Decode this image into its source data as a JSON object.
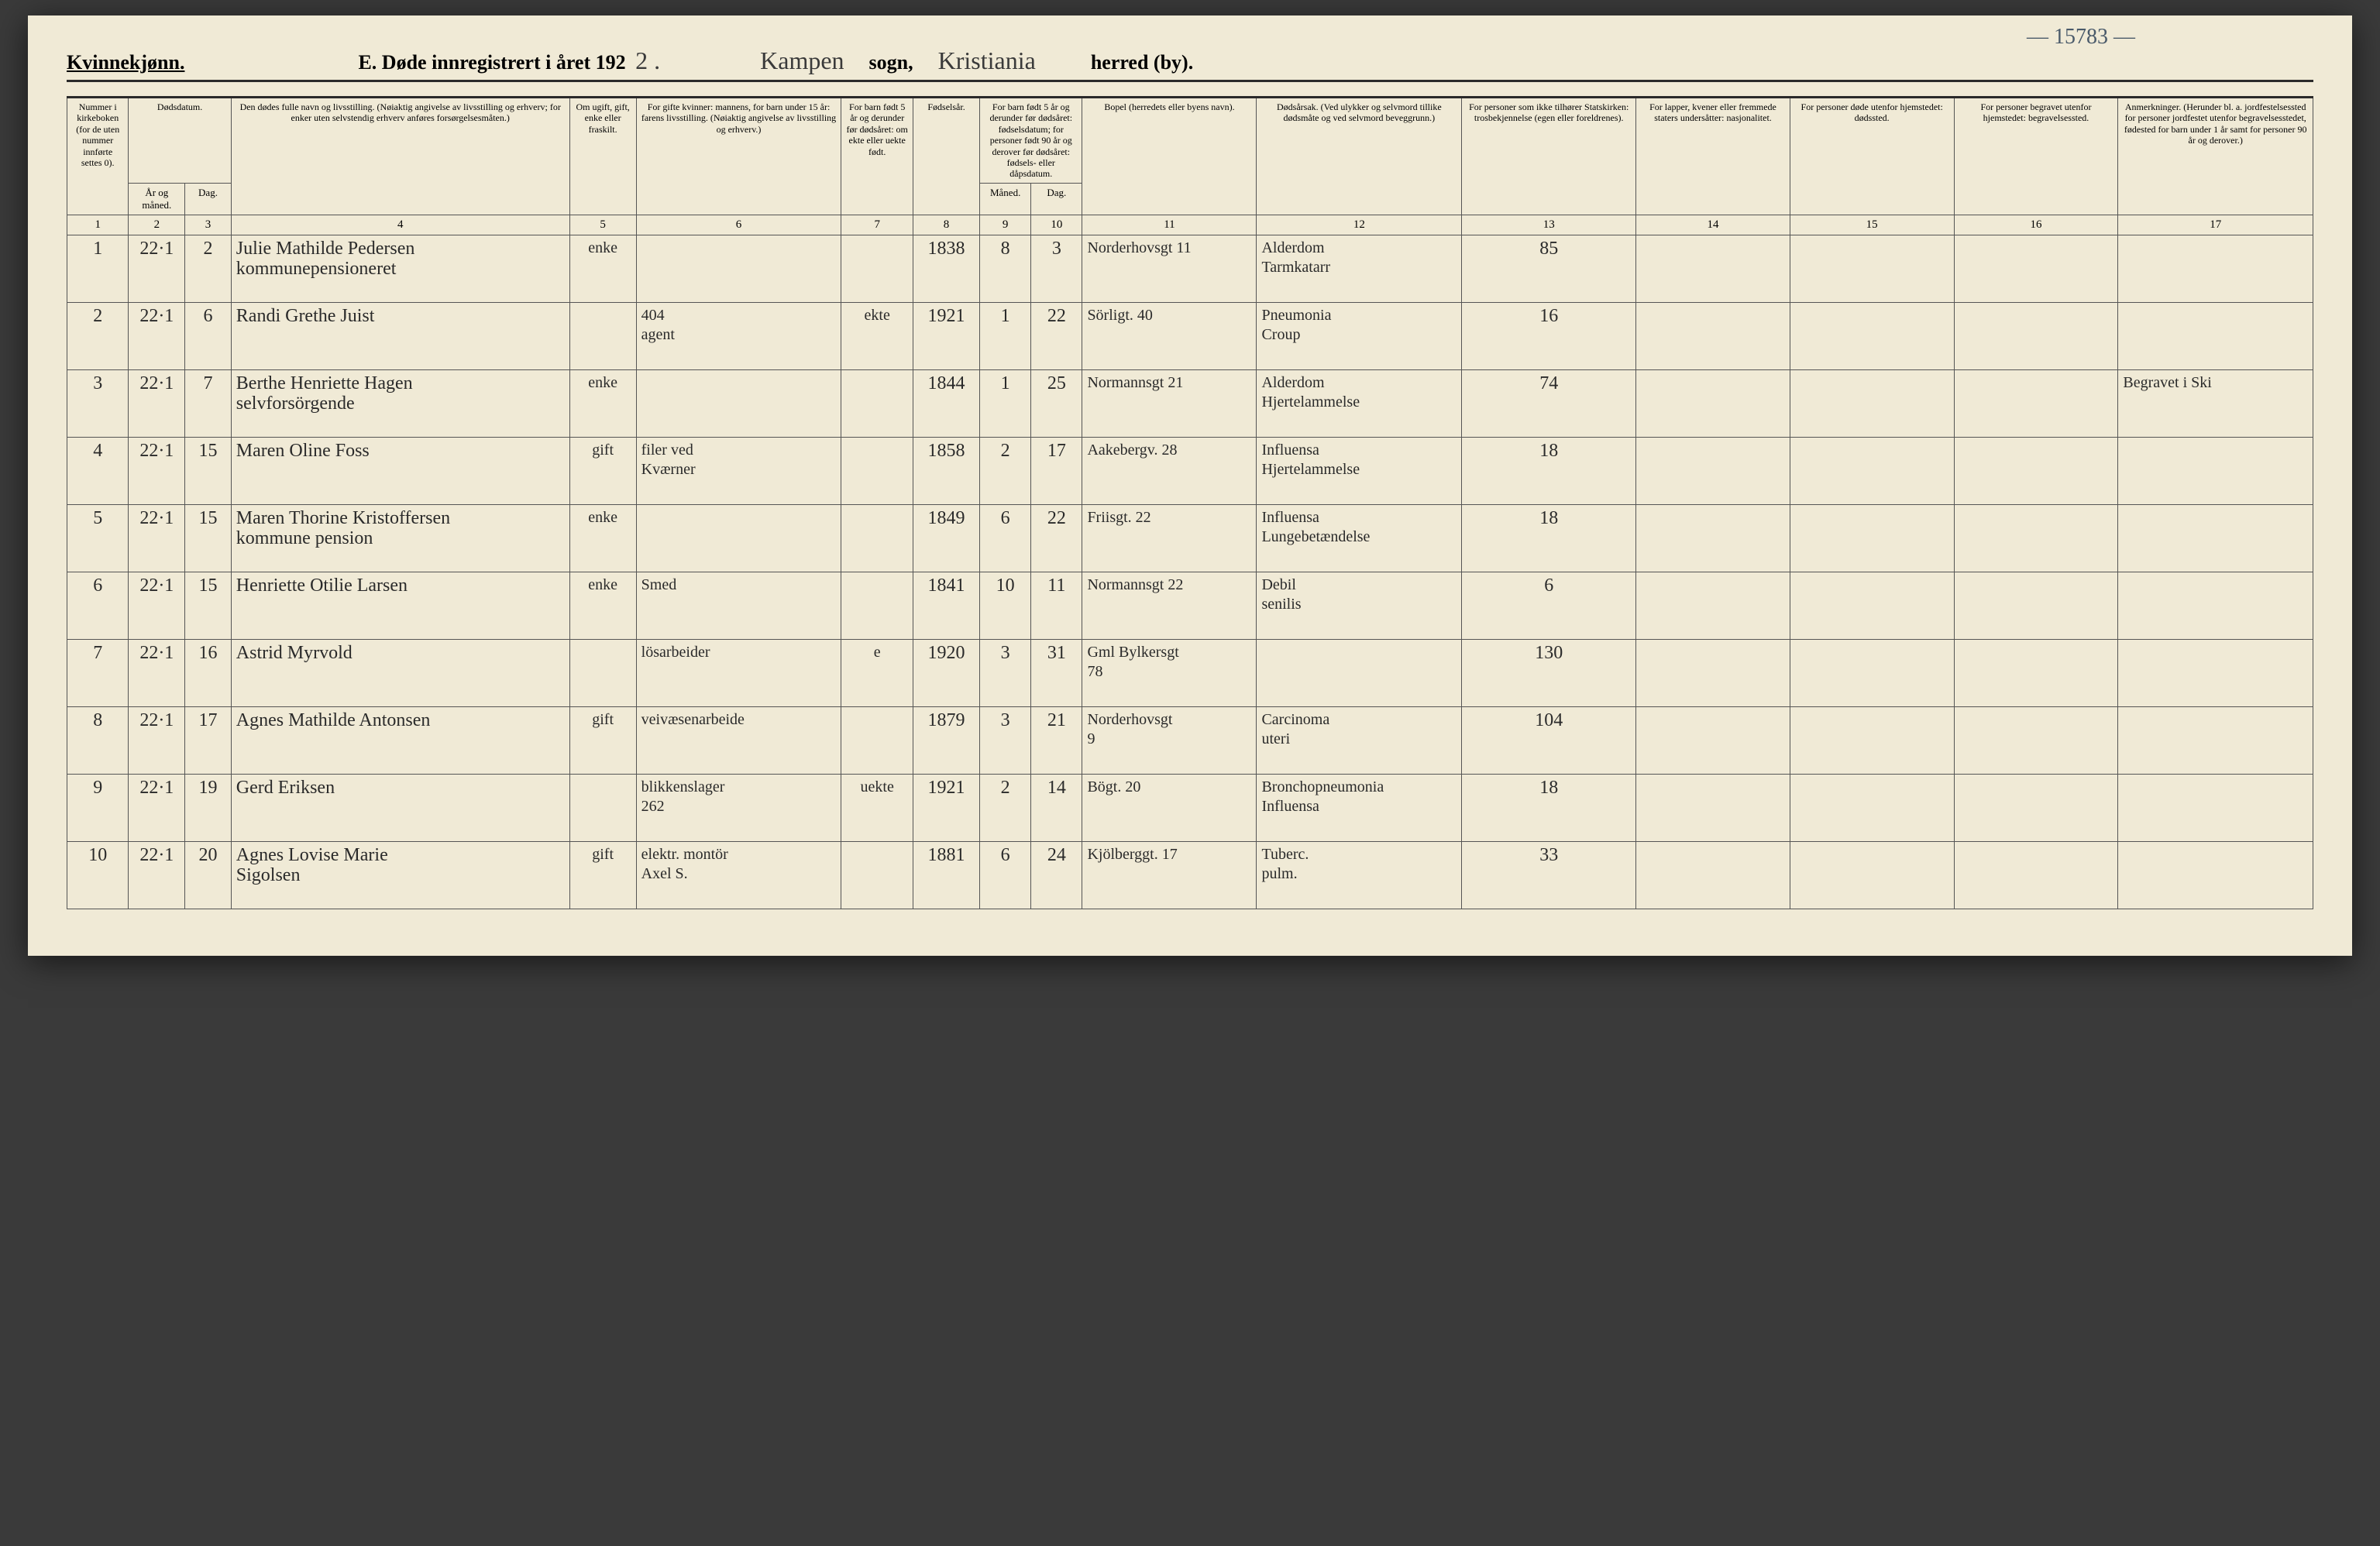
{
  "meta": {
    "page_note_topright": "— 15783 —",
    "gender_label": "Kvinnekjønn.",
    "title_prefix": "E.   Døde innregistrert i året 192",
    "year_suffix": "2 .",
    "sogn_label": "sogn,",
    "sogn_value": "Kampen",
    "herred_label": "herred (by).",
    "herred_value": "Kristiania"
  },
  "columns": {
    "1": "Nummer i kirke­boken (for de uten nummer innførte settes 0).",
    "2a": "Dødsdatum.",
    "2b": "År og måned.",
    "3": "Dag.",
    "4": "Den dødes fulle navn og livsstilling. (Nøiaktig angivelse av livsstilling og erhverv; for enker uten selvstendig erhverv anføres forsørgelsesmåten.)",
    "5": "Om ugift, gift, enke eller fraskilt.",
    "6": "For gifte kvinner: mannens, for barn under 15 år: farens livsstilling. (Nøiaktig angivelse av livsstilling og erhverv.)",
    "7": "For barn født 5 år og derunder før døds­året: om ekte eller uekte født.",
    "8": "Fødsels­år.",
    "9_10_top": "For barn født 5 år og der­under før dødsåret: fødselsdatum; for personer født 90 år og derover før dødsåret: fødsels- eller dåpsdatum.",
    "9": "Måned.",
    "10": "Dag.",
    "11": "Bopel (herredets eller byens navn).",
    "12": "Dødsårsak. (Ved ulykker og selv­mord tillike dødsmåte og ved selvmord beveggrunn.)",
    "13": "For personer som ikke tilhører Statskirken: trosbekjennelse (egen eller foreldrenes).",
    "14": "For lapper, kvener eller fremmede staters undersåtter: nasjonalitet.",
    "15": "For personer døde utenfor hjemstedet: dødssted.",
    "16": "For personer begravet utenfor hjemstedet: begravelsessted.",
    "17": "Anmerkninger. (Herunder bl. a. jordfestelsessted for personer jordfestet utenfor begravelses­stedet, fødested for barn under 1 år samt for personer 90 år og derover.)"
  },
  "colnums": [
    "1",
    "2",
    "3",
    "4",
    "5",
    "6",
    "7",
    "8",
    "9",
    "10",
    "11",
    "12",
    "13",
    "14",
    "15",
    "16",
    "17"
  ],
  "rows": [
    {
      "n": "1",
      "ym": "22·1",
      "d": "2",
      "name": "Julie Mathilde Pedersen\nkommunepensioneret",
      "civil": "enke",
      "spouse": "",
      "c7": "",
      "year": "1838",
      "m": "8",
      "dd": "3",
      "bopel": "Norderhovsgt 11",
      "cause": "Alderdom\nTarmkatarr",
      "c13": "85",
      "c14": "",
      "c15": "",
      "c16": "",
      "c17": ""
    },
    {
      "n": "2",
      "ym": "22·1",
      "d": "6",
      "name": "Randi Grethe Juist",
      "civil": "",
      "spouse": "404\nagent",
      "c7": "ekte",
      "year": "1921",
      "m": "1",
      "dd": "22",
      "bopel": "Sörligt. 40",
      "cause": "Pneumonia\nCroup",
      "c13": "16",
      "c14": "",
      "c15": "",
      "c16": "",
      "c17": ""
    },
    {
      "n": "3",
      "ym": "22·1",
      "d": "7",
      "name": "Berthe Henriette Hagen\nselvforsörgende",
      "civil": "enke",
      "spouse": "",
      "c7": "",
      "year": "1844",
      "m": "1",
      "dd": "25",
      "bopel": "Normannsgt 21",
      "cause": "Alderdom\nHjertelammelse",
      "c13": "74",
      "c14": "",
      "c15": "",
      "c16": "",
      "c17": "Begravet i Ski"
    },
    {
      "n": "4",
      "ym": "22·1",
      "d": "15",
      "name": "Maren Oline Foss",
      "civil": "gift",
      "spouse": "filer ved\nKværner",
      "c7": "",
      "year": "1858",
      "m": "2",
      "dd": "17",
      "bopel": "Aakebergv. 28",
      "cause": "Influensa\nHjertelammelse",
      "c13": "18",
      "c14": "",
      "c15": "",
      "c16": "",
      "c17": ""
    },
    {
      "n": "5",
      "ym": "22·1",
      "d": "15",
      "name": "Maren Thorine Kristoffersen\nkommune pension",
      "civil": "enke",
      "spouse": "",
      "c7": "",
      "year": "1849",
      "m": "6",
      "dd": "22",
      "bopel": "Friisgt. 22",
      "cause": "Influensa\nLungebetændelse",
      "c13": "18",
      "c14": "",
      "c15": "",
      "c16": "",
      "c17": ""
    },
    {
      "n": "6",
      "ym": "22·1",
      "d": "15",
      "name": "Henriette Otilie Larsen",
      "civil": "enke",
      "spouse": "Smed",
      "c7": "",
      "year": "1841",
      "m": "10",
      "dd": "11",
      "bopel": "Normannsgt 22",
      "cause": "Debil\nsenilis",
      "c13": "6",
      "c14": "",
      "c15": "",
      "c16": "",
      "c17": ""
    },
    {
      "n": "7",
      "ym": "22·1",
      "d": "16",
      "name": "Astrid Myrvold",
      "civil": "",
      "spouse": "lösarbeider",
      "c7": "e",
      "year": "1920",
      "m": "3",
      "dd": "31",
      "bopel": "Gml Bylkersgt\n78",
      "cause": "",
      "c13": "130",
      "c14": "",
      "c15": "",
      "c16": "",
      "c17": ""
    },
    {
      "n": "8",
      "ym": "22·1",
      "d": "17",
      "name": "Agnes Mathilde Antonsen",
      "civil": "gift",
      "spouse": "veivæsenarbeide",
      "c7": "",
      "year": "1879",
      "m": "3",
      "dd": "21",
      "bopel": "Norderhovsgt\n9",
      "cause": "Carcinoma\nuteri",
      "c13": "104",
      "c14": "",
      "c15": "",
      "c16": "",
      "c17": ""
    },
    {
      "n": "9",
      "ym": "22·1",
      "d": "19",
      "name": "Gerd Eriksen",
      "civil": "",
      "spouse": "blikkenslager\n262",
      "c7": "uekte",
      "year": "1921",
      "m": "2",
      "dd": "14",
      "bopel": "Bögt. 20",
      "cause": "Bronchopneumonia\nInfluensa",
      "c13": "18",
      "c14": "",
      "c15": "",
      "c16": "",
      "c17": ""
    },
    {
      "n": "10",
      "ym": "22·1",
      "d": "20",
      "name": "Agnes Lovise Marie\nSigolsen",
      "civil": "gift",
      "spouse": "elektr. montör\nAxel S.",
      "c7": "",
      "year": "1881",
      "m": "6",
      "dd": "24",
      "bopel": "Kjölberggt. 17",
      "cause": "Tuberc.\npulm.",
      "c13": "33",
      "c14": "",
      "c15": "",
      "c16": "",
      "c17": ""
    }
  ]
}
